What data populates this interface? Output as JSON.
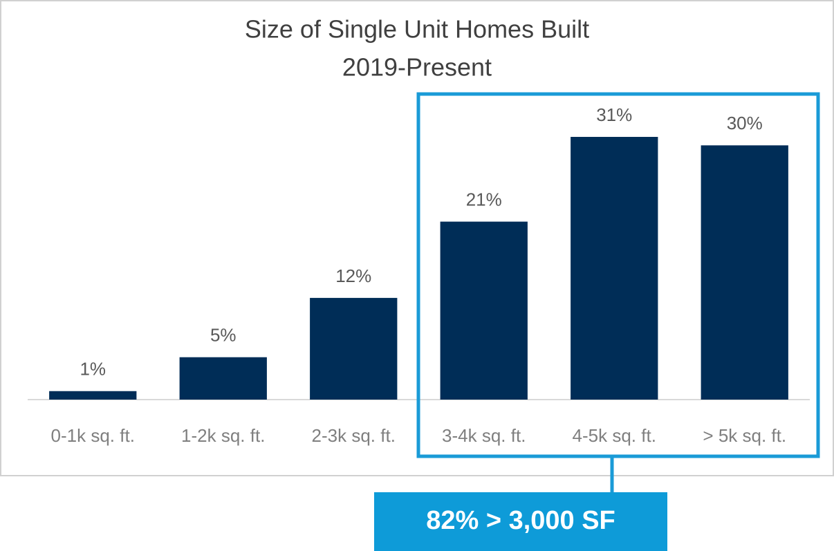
{
  "chart_data": {
    "type": "bar",
    "title": "Size of Single Unit Homes Built",
    "subtitle": "2019-Present",
    "categories": [
      "0-1k sq. ft.",
      "1-2k sq. ft.",
      "2-3k sq. ft.",
      "3-4k sq. ft.",
      "4-5k sq. ft.",
      "> 5k sq. ft."
    ],
    "values": [
      1,
      5,
      12,
      21,
      31,
      30
    ],
    "value_labels": [
      "1%",
      "5%",
      "12%",
      "21%",
      "31%",
      "30%"
    ],
    "color": "#002d57",
    "annotation": "82% > 3,000 SF"
  }
}
